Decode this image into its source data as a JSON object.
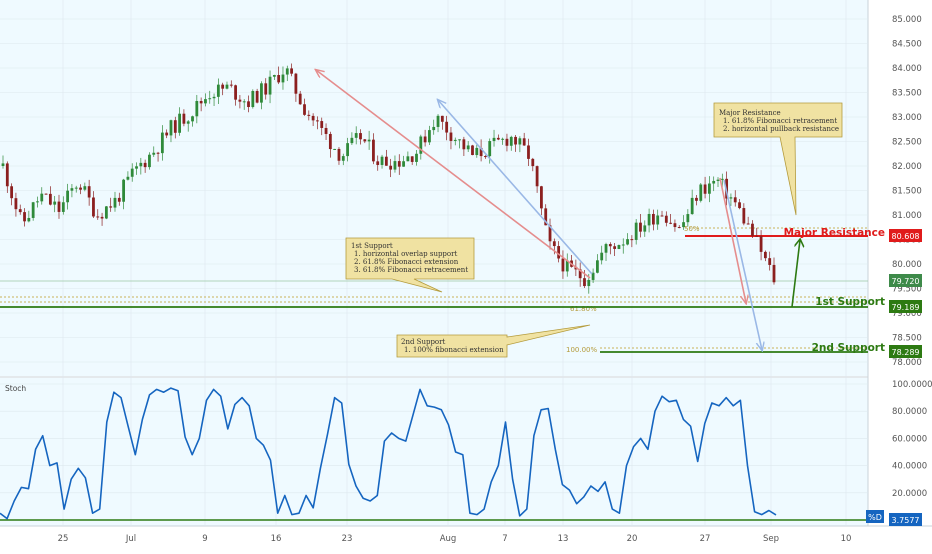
{
  "chart_data": [
    {
      "type": "candlestick",
      "title": "",
      "ylim": [
        77.6,
        85.3
      ],
      "y_ticks": [
        "85.000",
        "84.500",
        "84.000",
        "83.500",
        "83.000",
        "82.500",
        "82.000",
        "81.500",
        "81.000",
        "80.500",
        "80.000",
        "79.500",
        "79.000",
        "78.500",
        "78.000"
      ],
      "x_ticks": [
        "25",
        "Jul",
        "9",
        "16",
        "23",
        "Aug",
        "7",
        "13",
        "20",
        "27",
        "Sep",
        "10"
      ],
      "price_path": [
        [
          "Jun 21",
          82.0
        ],
        [
          "Jun 22",
          80.8
        ],
        [
          "Jun 24",
          81.4
        ],
        [
          "Jun 26",
          81.1
        ],
        [
          "Jun 28",
          81.7
        ],
        [
          "Jun 30",
          81.0
        ],
        [
          "Jul 2",
          81.3
        ],
        [
          "Jul 4",
          81.9
        ],
        [
          "Jul 6",
          82.3
        ],
        [
          "Jul 8",
          82.8
        ],
        [
          "Jul 10",
          83.1
        ],
        [
          "Jul 12",
          83.5
        ],
        [
          "Jul 14",
          83.6
        ],
        [
          "Jul 16",
          83.3
        ],
        [
          "Jul 18",
          83.6
        ],
        [
          "Jul 19",
          84.0
        ],
        [
          "Jul 20",
          83.2
        ],
        [
          "Jul 22",
          82.7
        ],
        [
          "Jul 24",
          82.2
        ],
        [
          "Jul 26",
          82.6
        ],
        [
          "Jul 28",
          82.1
        ],
        [
          "Jul 30",
          82.1
        ],
        [
          "Aug 1",
          82.3
        ],
        [
          "Aug 2",
          83.0
        ],
        [
          "Aug 3",
          82.6
        ],
        [
          "Aug 5",
          82.2
        ],
        [
          "Aug 7",
          82.4
        ],
        [
          "Aug 9",
          82.6
        ],
        [
          "Aug 11",
          82.2
        ],
        [
          "Aug 13",
          80.4
        ],
        [
          "Aug 14",
          79.9
        ],
        [
          "Aug 16",
          79.7
        ],
        [
          "Aug 17",
          80.3
        ],
        [
          "Aug 19",
          80.5
        ],
        [
          "Aug 21",
          80.8
        ],
        [
          "Aug 23",
          81.1
        ],
        [
          "Aug 25",
          80.7
        ],
        [
          "Aug 27",
          81.5
        ],
        [
          "Aug 29",
          81.7
        ],
        [
          "Aug 30",
          81.2
        ],
        [
          "Aug 31",
          80.5
        ],
        [
          "Sep 1",
          79.7
        ]
      ],
      "levels": [
        {
          "label": "Major Resistance",
          "price": "80.608",
          "value": 80.608,
          "color": "#e01b1b"
        },
        {
          "label": "1st Support",
          "price": "79.189",
          "value": 79.189,
          "color": "#2d7a12"
        },
        {
          "label": "2nd Support",
          "price": "78.289",
          "value": 78.289,
          "color": "#2d7a12"
        }
      ],
      "last_price": {
        "price": "79.720",
        "value": 79.72,
        "color": "#3e8a4a"
      },
      "fib_labels": [
        "50%",
        "61.80%",
        "100.00%"
      ],
      "notes": [
        {
          "lines": [
            "Major Resistance",
            "1. 61.8% Fibonacci retracement",
            "2. horizontal pullback resistance"
          ]
        },
        {
          "lines": [
            "1st Support",
            "1. horizontal overlap support",
            "2. 61.8% Fibonacci extension",
            "3. 61.8% Fibonacci retracement"
          ]
        },
        {
          "lines": [
            "2nd Support",
            "1. 100% fibonacci extension"
          ]
        }
      ],
      "colors": {
        "up": "#2f8a3a",
        "down": "#8b1f1f",
        "panel_bg": "#effaff",
        "note_bg": "#f0e2a2",
        "note_border": "#b49b3c"
      }
    },
    {
      "type": "line",
      "title": "Stoch",
      "ylim": [
        0,
        100
      ],
      "y_ticks": [
        "100.0000",
        "80.0000",
        "60.0000",
        "40.0000",
        "20.0000"
      ],
      "series": [
        {
          "name": "%D",
          "color": "#1565c0",
          "values": [
            5,
            1,
            14,
            24,
            23,
            52,
            62,
            40,
            42,
            8,
            30,
            38,
            31,
            5,
            8,
            72,
            94,
            90,
            69,
            48,
            74,
            92,
            96,
            94,
            97,
            95,
            61,
            48,
            60,
            88,
            96,
            91,
            67,
            85,
            90,
            84,
            60,
            55,
            44,
            5,
            18,
            4,
            5,
            18,
            9,
            38,
            63,
            90,
            86,
            41,
            25,
            16,
            14,
            18,
            58,
            64,
            60,
            58,
            77,
            96,
            84,
            83,
            81,
            70,
            50,
            48,
            5,
            4,
            8,
            28,
            40,
            72,
            30,
            3,
            8,
            62,
            81,
            82,
            52,
            26,
            22,
            12,
            17,
            25,
            21,
            28,
            8,
            5,
            40,
            54,
            60,
            52,
            80,
            91,
            87,
            88,
            74,
            69,
            43,
            71,
            86,
            84,
            90,
            84,
            88,
            40,
            6,
            4,
            7,
            3.7577
          ]
        }
      ],
      "last_value": {
        "label": "%D",
        "value": "3.7577",
        "color": "#1565c0"
      }
    }
  ]
}
